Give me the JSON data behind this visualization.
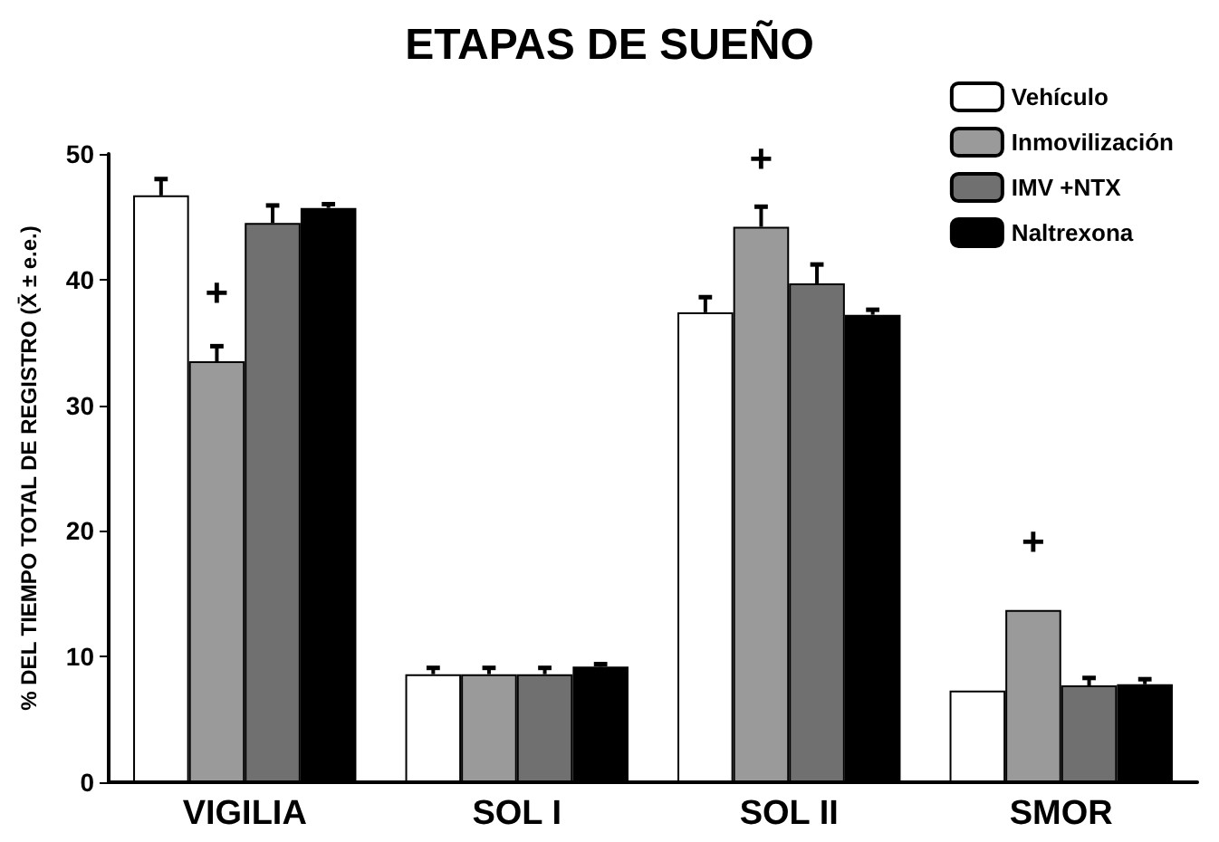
{
  "chart_data": {
    "type": "bar",
    "title": "ETAPAS DE SUEÑO",
    "ylabel": "% DEL TIEMPO TOTAL DE REGISTRO (X̄ ± e.e.)",
    "categories": [
      "VIGILIA",
      "SOL I",
      "SOL II",
      "SMOR"
    ],
    "series": [
      {
        "name": "Vehículo",
        "color": "#ffffff",
        "values": [
          46.7,
          8.6,
          37.4,
          7.3
        ],
        "errors": [
          1.3,
          0.5,
          1.2,
          null
        ]
      },
      {
        "name": "Inmovilización",
        "color": "#9a9a9a",
        "values": [
          33.5,
          8.6,
          44.2,
          13.7
        ],
        "errors": [
          1.2,
          0.5,
          1.6,
          null
        ]
      },
      {
        "name": "IMV +NTX",
        "color": "#707070",
        "values": [
          44.5,
          8.6,
          39.7,
          7.7
        ],
        "errors": [
          1.4,
          0.5,
          1.5,
          0.6
        ]
      },
      {
        "name": "Naltrexona",
        "color": "#000000",
        "values": [
          45.7,
          9.2,
          37.2,
          7.8
        ],
        "errors": [
          0.3,
          0.2,
          0.4,
          0.4
        ]
      }
    ],
    "annotations": [
      {
        "text": "+",
        "x": "VIGILIA",
        "y": 33.5
      },
      {
        "text": "+",
        "x": "SOL II",
        "y": 44.2
      },
      {
        "text": "+",
        "x": "SMOR",
        "y": 13.7
      }
    ],
    "ylim": [
      0,
      50
    ],
    "yticks": [
      0,
      10,
      20,
      30,
      40,
      50
    ],
    "grid": false,
    "legend": "top right"
  }
}
